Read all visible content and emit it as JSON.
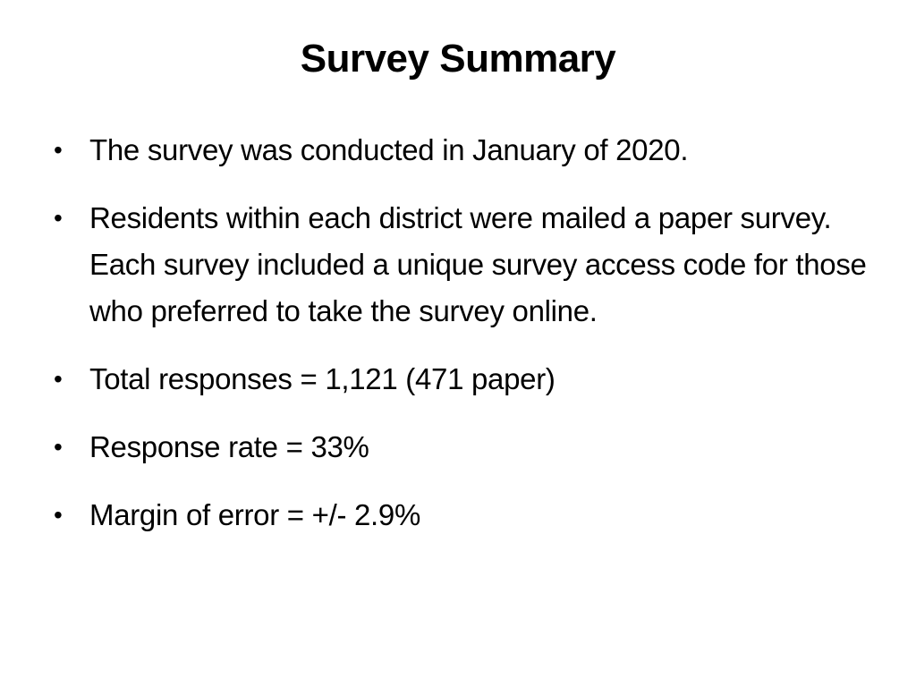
{
  "slide": {
    "title": "Survey Summary",
    "bullet_glyph": "•",
    "bullets": [
      "The survey was conducted in January of 2020.",
      "Residents within each district were mailed a paper survey. Each survey included a unique survey access code for those who preferred to take the survey online.",
      "Total responses = 1,121 (471 paper)",
      "Response rate = 33%",
      "Margin of error = +/- 2.9%"
    ]
  }
}
